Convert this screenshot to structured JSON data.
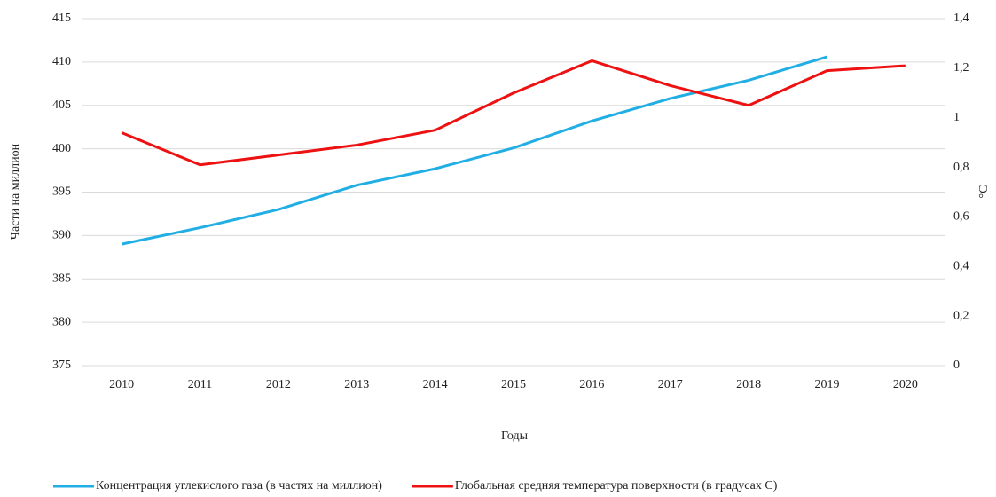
{
  "chart_data": {
    "type": "line",
    "x_label": "Годы",
    "y_label": "Части на миллион",
    "y2_label": "°C",
    "categories": [
      "2010",
      "2011",
      "2012",
      "2013",
      "2014",
      "2015",
      "2016",
      "2017",
      "2018",
      "2019",
      "2020"
    ],
    "series": [
      {
        "name": "Концентрация углекислого газа (в частях на миллион)",
        "color": "#21aee4",
        "values": [
          389.0,
          390.9,
          393.0,
          395.8,
          397.7,
          400.1,
          403.2,
          405.8,
          407.9,
          410.6,
          null
        ]
      },
      {
        "name": "Глобальная средняя температура поверхности (в градусах C)",
        "color": "#ee1111",
        "axis": "y2",
        "values": [
          0.94,
          0.81,
          0.85,
          0.89,
          0.95,
          1.1,
          1.23,
          1.13,
          1.05,
          1.19,
          1.21
        ]
      }
    ],
    "ylim": [
      375,
      415
    ],
    "yticks": [
      375,
      380,
      385,
      390,
      395,
      400,
      405,
      410,
      415
    ],
    "y2lim": [
      0,
      1.4
    ],
    "y2ticks": [
      0,
      {
        "value": 0.2,
        "label": "0,2"
      },
      {
        "value": 0.4,
        "label": "0,4"
      },
      {
        "value": 0.6,
        "label": "0,6"
      },
      {
        "value": 0.8,
        "label": "0,8"
      },
      1,
      {
        "value": 1.2,
        "label": "1,2"
      },
      {
        "value": 1.4,
        "label": "1,4"
      }
    ],
    "grid": true,
    "legend": "bottom"
  }
}
